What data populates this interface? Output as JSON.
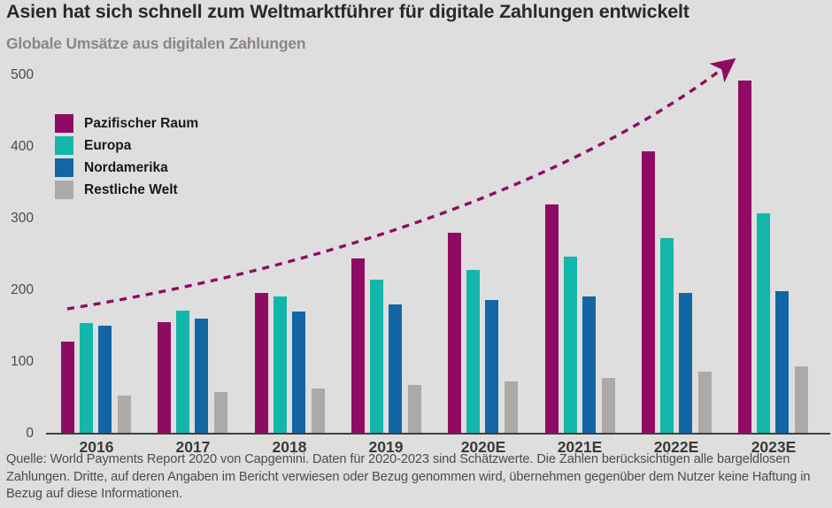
{
  "header": {
    "title": "Asien hat sich schnell zum Weltmarktführer für digitale Zahlungen entwickelt",
    "subtitle": "Globale Umsätze aus digitalen Zahlungen"
  },
  "footer": {
    "source": "Quelle: World Payments Report 2020 von Capgemini. Daten für 2020-2023 sind Schätzwerte. Die Zahlen berücksichtigen alle bargeldlosen Zahlungen. Dritte, auf deren Angaben im Bericht verwiesen oder Bezug genommen wird, übernehmen gegenüber dem Nutzer keine Haftung in Bezug auf diese Informationen."
  },
  "colors": {
    "background": "#DEDEDE",
    "title_text": "#2A2A2A",
    "subtitle_text": "#8D8683",
    "axis_line": "#3F3F3F",
    "tick_text": "#4A4A4A",
    "category_text": "#3A3A3A",
    "trend_arrow": "#8E0A63"
  },
  "chart_data": {
    "type": "bar",
    "title": "Asien hat sich schnell zum Weltmarktführer für digitale Zahlungen entwickelt",
    "subtitle": "Globale Umsätze aus digitalen Zahlungen",
    "categories": [
      "2016",
      "2017",
      "2018",
      "2019",
      "2020E",
      "2021E",
      "2022E",
      "2023E"
    ],
    "series": [
      {
        "name": "Pazifischer Raum",
        "color": "#8E0A63",
        "values": [
          128,
          155,
          196,
          245,
          280,
          320,
          394,
          493
        ]
      },
      {
        "name": "Europa",
        "color": "#12B7A9",
        "values": [
          154,
          172,
          191,
          215,
          228,
          247,
          273,
          307
        ]
      },
      {
        "name": "Nordamerika",
        "color": "#1366A4",
        "values": [
          151,
          160,
          170,
          180,
          186,
          191,
          196,
          199
        ]
      },
      {
        "name": "Restliche Welt",
        "color": "#ACA9A6",
        "values": [
          53,
          58,
          63,
          68,
          73,
          78,
          87,
          94
        ]
      }
    ],
    "y_ticks": [
      0,
      100,
      200,
      300,
      400,
      500
    ],
    "ylim": [
      0,
      500
    ],
    "grid": false,
    "legend_position": "top-left",
    "annotations": [
      {
        "type": "trend-arrow",
        "style": "dashed",
        "from_category": "2016",
        "to_category": "2023E",
        "color": "#8E0A63"
      }
    ]
  }
}
